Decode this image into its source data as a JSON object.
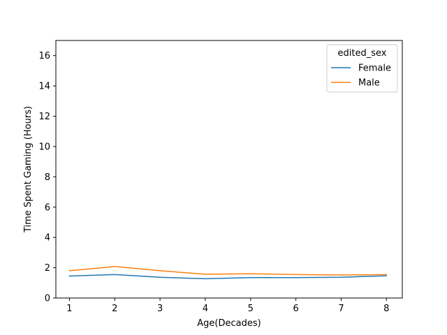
{
  "chart_data": {
    "type": "line",
    "xlabel": "Age(Decades)",
    "ylabel": "Time Spent Gaming (Hours)",
    "x": [
      1,
      2,
      3,
      4,
      5,
      6,
      7,
      8
    ],
    "xlim": [
      0.7,
      8.35
    ],
    "ylim": [
      0,
      17
    ],
    "xticks": [
      "1",
      "2",
      "3",
      "4",
      "5",
      "6",
      "7",
      "8"
    ],
    "yticks": [
      "0",
      "2",
      "4",
      "6",
      "8",
      "10",
      "12",
      "14",
      "16"
    ],
    "grid": false,
    "legend": {
      "title": "edited_sex",
      "placement": "top-right"
    },
    "series": [
      {
        "name": "Female",
        "color": "#1f77b4",
        "values": [
          1.45,
          1.55,
          1.37,
          1.27,
          1.35,
          1.35,
          1.37,
          1.47
        ]
      },
      {
        "name": "Male",
        "color": "#ff7f0e",
        "values": [
          1.8,
          2.08,
          1.8,
          1.57,
          1.6,
          1.55,
          1.52,
          1.55
        ]
      }
    ]
  }
}
